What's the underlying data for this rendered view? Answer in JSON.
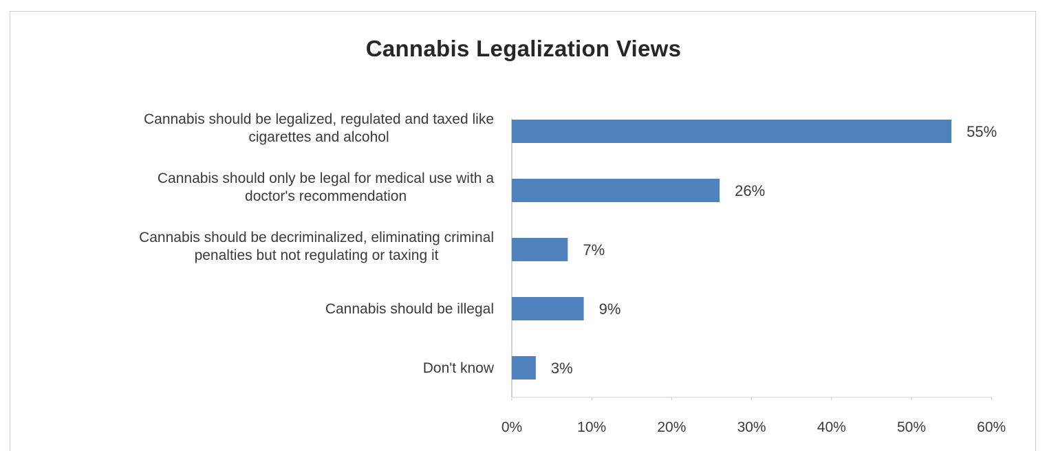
{
  "chart_data": {
    "type": "bar",
    "orientation": "horizontal",
    "title": "Cannabis Legalization Views",
    "xlabel": "",
    "ylabel": "",
    "categories": [
      [
        "Cannabis should be legalized, regulated and taxed like",
        "cigarettes and alcohol"
      ],
      [
        "Cannabis should only be legal for medical use with a",
        "doctor's recommendation"
      ],
      [
        "Cannabis should be decriminalized, eliminating criminal",
        "penalties but not regulating or taxing it"
      ],
      [
        "Cannabis should be illegal"
      ],
      [
        "Don't know"
      ]
    ],
    "values": [
      55,
      26,
      7,
      9,
      3
    ],
    "value_labels": [
      "55%",
      "26%",
      "7%",
      "9%",
      "3%"
    ],
    "xlim": [
      0,
      60
    ],
    "xticks": [
      0,
      10,
      20,
      30,
      40,
      50,
      60
    ],
    "xtick_labels": [
      "0%",
      "10%",
      "20%",
      "30%",
      "40%",
      "50%",
      "60%"
    ],
    "bar_color": "#4f81bd",
    "grid": false,
    "legend": "none"
  }
}
